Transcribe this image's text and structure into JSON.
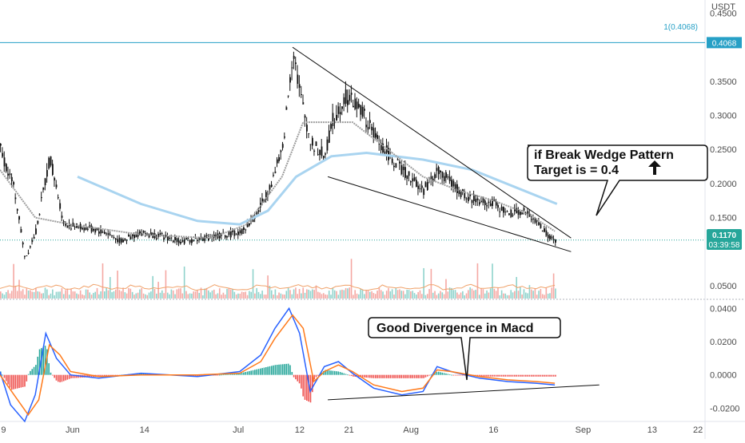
{
  "chart_data": [
    {
      "type": "candlestick",
      "pair_label": "USDT",
      "price_axis_labels": [
        "0.4500",
        "0.3500",
        "0.3000",
        "0.2500",
        "0.2000",
        "0.1500",
        "0.0500"
      ],
      "ylim": [
        0.03,
        0.46
      ],
      "x_tick_labels": [
        "9",
        "Jun",
        "14",
        "Jul",
        "12",
        "21",
        "Aug",
        "16",
        "Sep",
        "13",
        "22"
      ],
      "fib_line": {
        "label": "1(0.4068)",
        "value": 0.4068
      },
      "last_price": {
        "value": "0.1170",
        "countdown": "03:39:58"
      },
      "price_path": [
        [
          0,
          0.25
        ],
        [
          0.02,
          0.19
        ],
        [
          0.035,
          0.09
        ],
        [
          0.05,
          0.13
        ],
        [
          0.07,
          0.24
        ],
        [
          0.09,
          0.14
        ],
        [
          0.12,
          0.135
        ],
        [
          0.15,
          0.128
        ],
        [
          0.17,
          0.115
        ],
        [
          0.2,
          0.128
        ],
        [
          0.23,
          0.122
        ],
        [
          0.26,
          0.115
        ],
        [
          0.3,
          0.122
        ],
        [
          0.34,
          0.128
        ],
        [
          0.36,
          0.15
        ],
        [
          0.38,
          0.19
        ],
        [
          0.4,
          0.25
        ],
        [
          0.41,
          0.35
        ],
        [
          0.415,
          0.4
        ],
        [
          0.425,
          0.33
        ],
        [
          0.44,
          0.26
        ],
        [
          0.46,
          0.24
        ],
        [
          0.47,
          0.29
        ],
        [
          0.49,
          0.33
        ],
        [
          0.51,
          0.31
        ],
        [
          0.53,
          0.27
        ],
        [
          0.56,
          0.23
        ],
        [
          0.58,
          0.21
        ],
        [
          0.6,
          0.19
        ],
        [
          0.62,
          0.22
        ],
        [
          0.64,
          0.2
        ],
        [
          0.66,
          0.18
        ],
        [
          0.7,
          0.17
        ],
        [
          0.72,
          0.155
        ],
        [
          0.74,
          0.16
        ],
        [
          0.76,
          0.145
        ],
        [
          0.775,
          0.125
        ],
        [
          0.787,
          0.115
        ]
      ],
      "ma_gray_path": [
        [
          0.0,
          0.22
        ],
        [
          0.05,
          0.15
        ],
        [
          0.1,
          0.14
        ],
        [
          0.2,
          0.125
        ],
        [
          0.3,
          0.12
        ],
        [
          0.35,
          0.14
        ],
        [
          0.4,
          0.21
        ],
        [
          0.43,
          0.29
        ],
        [
          0.46,
          0.29
        ],
        [
          0.5,
          0.29
        ],
        [
          0.55,
          0.25
        ],
        [
          0.6,
          0.21
        ],
        [
          0.65,
          0.19
        ],
        [
          0.7,
          0.175
        ],
        [
          0.75,
          0.155
        ],
        [
          0.787,
          0.13
        ]
      ],
      "ma_blue_path": [
        [
          0.11,
          0.21
        ],
        [
          0.2,
          0.17
        ],
        [
          0.28,
          0.145
        ],
        [
          0.34,
          0.14
        ],
        [
          0.38,
          0.16
        ],
        [
          0.42,
          0.21
        ],
        [
          0.47,
          0.24
        ],
        [
          0.52,
          0.245
        ],
        [
          0.6,
          0.235
        ],
        [
          0.67,
          0.22
        ],
        [
          0.73,
          0.195
        ],
        [
          0.79,
          0.17
        ]
      ],
      "wedge_upper": [
        [
          0.415,
          0.4
        ],
        [
          0.81,
          0.12
        ]
      ],
      "wedge_lower": [
        [
          0.465,
          0.21
        ],
        [
          0.81,
          0.1
        ]
      ],
      "callout": {
        "line1": "if Break Wedge Pattern",
        "line2": "Target is = 0.4"
      }
    },
    {
      "type": "line",
      "title": "Macd",
      "y_tick_labels": [
        "0.0400",
        "0.0200",
        "0.0000",
        "-0.0200"
      ],
      "ylim": [
        -0.028,
        0.044
      ],
      "series": [
        {
          "color": "#2962ff",
          "values": [
            [
              0,
              0.002
            ],
            [
              0.015,
              -0.018
            ],
            [
              0.035,
              -0.028
            ],
            [
              0.05,
              -0.012
            ],
            [
              0.065,
              0.025
            ],
            [
              0.08,
              0.01
            ],
            [
              0.1,
              0.0
            ],
            [
              0.14,
              -0.002
            ],
            [
              0.2,
              0.001
            ],
            [
              0.28,
              -0.001
            ],
            [
              0.34,
              0.002
            ],
            [
              0.37,
              0.012
            ],
            [
              0.39,
              0.028
            ],
            [
              0.41,
              0.04
            ],
            [
              0.425,
              0.025
            ],
            [
              0.44,
              -0.01
            ],
            [
              0.46,
              0.005
            ],
            [
              0.48,
              0.008
            ],
            [
              0.5,
              0.001
            ],
            [
              0.53,
              -0.008
            ],
            [
              0.57,
              -0.012
            ],
            [
              0.6,
              -0.01
            ],
            [
              0.62,
              0.005
            ],
            [
              0.64,
              0.002
            ],
            [
              0.68,
              -0.002
            ],
            [
              0.72,
              -0.004
            ],
            [
              0.76,
              -0.005
            ],
            [
              0.787,
              -0.006
            ]
          ]
        },
        {
          "color": "#ff7a1a",
          "values": [
            [
              0,
              0.0
            ],
            [
              0.02,
              -0.012
            ],
            [
              0.04,
              -0.024
            ],
            [
              0.055,
              -0.015
            ],
            [
              0.07,
              0.018
            ],
            [
              0.085,
              0.012
            ],
            [
              0.1,
              0.002
            ],
            [
              0.14,
              -0.001
            ],
            [
              0.2,
              0.0
            ],
            [
              0.28,
              0.0
            ],
            [
              0.34,
              0.001
            ],
            [
              0.37,
              0.008
            ],
            [
              0.39,
              0.022
            ],
            [
              0.415,
              0.036
            ],
            [
              0.43,
              0.028
            ],
            [
              0.445,
              -0.004
            ],
            [
              0.46,
              0.002
            ],
            [
              0.48,
              0.006
            ],
            [
              0.5,
              0.002
            ],
            [
              0.53,
              -0.006
            ],
            [
              0.57,
              -0.01
            ],
            [
              0.6,
              -0.008
            ],
            [
              0.62,
              0.003
            ],
            [
              0.64,
              0.002
            ],
            [
              0.68,
              -0.001
            ],
            [
              0.72,
              -0.003
            ],
            [
              0.76,
              -0.004
            ],
            [
              0.787,
              -0.005
            ]
          ]
        }
      ],
      "divergence_line": [
        [
          0.465,
          -0.015
        ],
        [
          0.85,
          -0.006
        ]
      ],
      "callout": {
        "text": "Good Divergence in Macd"
      }
    }
  ]
}
